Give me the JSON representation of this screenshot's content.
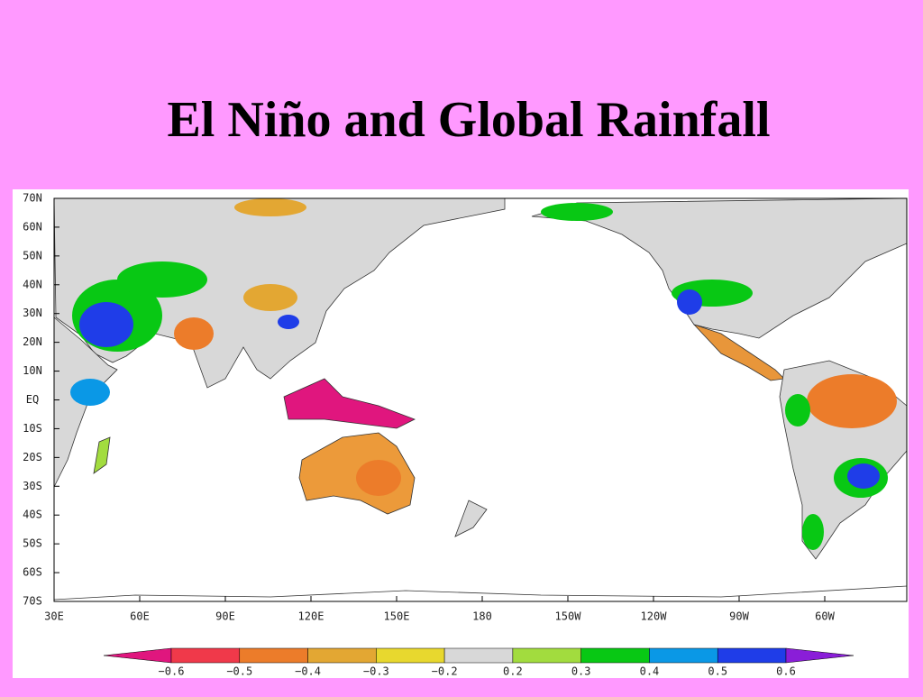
{
  "header": {
    "title": "El  Niño and Global Rainfall"
  },
  "map": {
    "lat_labels": [
      "70N",
      "60N",
      "50N",
      "40N",
      "30N",
      "20N",
      "10N",
      "EQ",
      "10S",
      "20S",
      "30S",
      "40S",
      "50S",
      "60S",
      "70S"
    ],
    "lon_labels": [
      "30E",
      "60E",
      "90E",
      "120E",
      "150E",
      "180",
      "150W",
      "120W",
      "90W",
      "60W"
    ]
  },
  "colorbar": {
    "colors": [
      "#e0167e",
      "#f0394a",
      "#ec7c2a",
      "#e3a733",
      "#e8d82e",
      "#d8d8d8",
      "#a2dc3e",
      "#08c814",
      "#0a98e6",
      "#1f3de8",
      "#8a1ed8"
    ],
    "ticks": [
      {
        "value": -0.6,
        "label": "−0.6"
      },
      {
        "value": -0.5,
        "label": "−0.5"
      },
      {
        "value": -0.4,
        "label": "−0.4"
      },
      {
        "value": -0.3,
        "label": "−0.3"
      },
      {
        "value": -0.2,
        "label": "−0.2"
      },
      0.2,
      0.3,
      0.4,
      0.5,
      0.6
    ]
  }
}
